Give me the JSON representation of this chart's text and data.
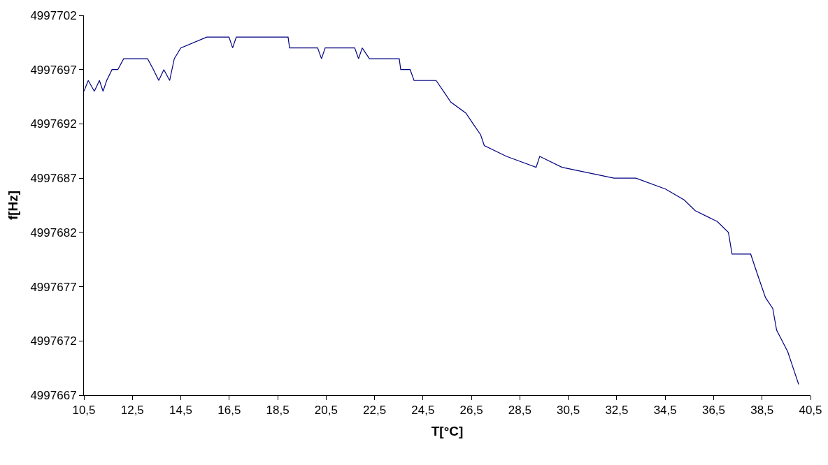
{
  "chart_data": {
    "type": "line",
    "xlabel": "T[°C]",
    "ylabel": "f[Hz]",
    "xlim": [
      10.5,
      40.5
    ],
    "xticks": [
      {
        "value": 10.5,
        "label": "10,5"
      },
      {
        "value": 12.5,
        "label": "12,5"
      },
      {
        "value": 14.5,
        "label": "14,5"
      },
      {
        "value": 16.5,
        "label": "16,5"
      },
      {
        "value": 18.5,
        "label": "18,5"
      },
      {
        "value": 20.5,
        "label": "20,5"
      },
      {
        "value": 22.5,
        "label": "22,5"
      },
      {
        "value": 24.5,
        "label": "24,5"
      },
      {
        "value": 26.5,
        "label": "26,5"
      },
      {
        "value": 28.5,
        "label": "28,5"
      },
      {
        "value": 30.5,
        "label": "30,5"
      },
      {
        "value": 32.5,
        "label": "32,5"
      },
      {
        "value": 34.5,
        "label": "34,5"
      },
      {
        "value": 36.5,
        "label": "36,5"
      },
      {
        "value": 38.5,
        "label": "38,5"
      },
      {
        "value": 40.5,
        "label": "40,5"
      }
    ],
    "ylim": [
      4997667,
      4997702
    ],
    "yticks": [
      4997667,
      4997672,
      4997677,
      4997682,
      4997687,
      4997692,
      4997697,
      4997702
    ],
    "grid": false,
    "marker": "none",
    "line_style": "solid",
    "series": [
      {
        "color": "#000080",
        "x": [
          10.5,
          10.68,
          10.93,
          11.14,
          11.29,
          11.44,
          11.66,
          11.9,
          12.14,
          13.13,
          13.37,
          13.59,
          13.8,
          14.04,
          14.23,
          14.5,
          15.57,
          16.49,
          16.64,
          16.79,
          18.93,
          18.99,
          20.15,
          20.31,
          20.46,
          21.68,
          21.84,
          21.99,
          22.29,
          23.52,
          23.58,
          23.97,
          24.13,
          25.04,
          25.35,
          25.65,
          26.27,
          26.57,
          26.88,
          27.03,
          27.95,
          29.17,
          29.32,
          30.24,
          32.38,
          33.29,
          34.51,
          35.28,
          35.74,
          36.65,
          37.11,
          37.26,
          38.03,
          38.33,
          38.64,
          38.94,
          39.1,
          39.56,
          39.86,
          40.01
        ],
        "values": [
          4997695,
          4997696,
          4997695,
          4997696,
          4997695,
          4997696,
          4997697,
          4997697,
          4997698,
          4997698,
          4997697,
          4997696,
          4997697,
          4997696,
          4997698,
          4997699,
          4997700,
          4997700,
          4997699,
          4997700,
          4997700,
          4997699,
          4997699,
          4997698,
          4997699,
          4997699,
          4997698,
          4997699,
          4997698,
          4997698,
          4997697,
          4997697,
          4997696,
          4997696,
          4997695,
          4997694,
          4997693,
          4997692,
          4997691,
          4997690,
          4997689,
          4997688,
          4997689,
          4997688,
          4997687,
          4997687,
          4997686,
          4997685,
          4997684,
          4997683,
          4997682,
          4997680,
          4997680,
          4997678,
          4997676,
          4997675,
          4997673,
          4997671,
          4997669,
          4997668
        ]
      }
    ]
  }
}
